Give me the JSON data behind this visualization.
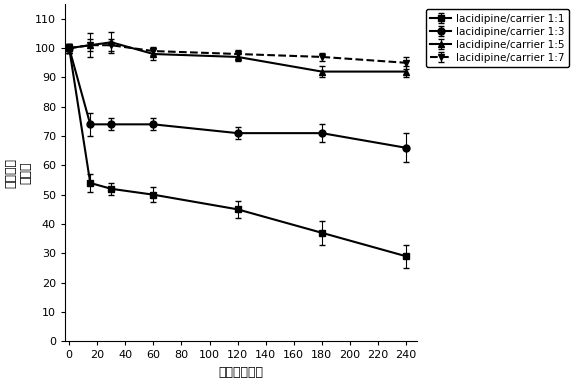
{
  "x": [
    0,
    15,
    30,
    60,
    120,
    180,
    240
  ],
  "series": [
    {
      "label": "lacidipine/carrier 1:1",
      "y": [
        100,
        54,
        52,
        50,
        45,
        37,
        29
      ],
      "yerr": [
        1.5,
        3,
        2,
        2.5,
        3,
        4,
        4
      ],
      "marker": "s",
      "linestyle": "-",
      "color": "#000000",
      "linewidth": 1.5
    },
    {
      "label": "lacidipine/carrier 1:3",
      "y": [
        100,
        74,
        74,
        74,
        71,
        71,
        66
      ],
      "yerr": [
        1.5,
        4,
        2,
        2,
        2,
        3,
        5
      ],
      "marker": "o",
      "linestyle": "-",
      "color": "#000000",
      "linewidth": 1.5
    },
    {
      "label": "lacidipine/carrier 1:5",
      "y": [
        100,
        101,
        102,
        98,
        97,
        92,
        92
      ],
      "yerr": [
        1.5,
        4,
        3.5,
        2,
        1.5,
        2,
        2
      ],
      "marker": "^",
      "linestyle": "-",
      "color": "#000000",
      "linewidth": 1.5
    },
    {
      "label": "lacidipine/carrier 1:7",
      "y": [
        100,
        101,
        101,
        99,
        98,
        97,
        95
      ],
      "yerr": [
        1.5,
        2,
        2,
        1.5,
        1.5,
        1.5,
        2
      ],
      "marker": "v",
      "linestyle": "--",
      "color": "#000000",
      "linewidth": 1.5
    }
  ],
  "xlabel": "时间（分钟）",
  "ylabel_line1": "药物浓度",
  "ylabel_line2": "（％）",
  "ylim": [
    0,
    115
  ],
  "yticks": [
    0,
    10,
    20,
    30,
    40,
    50,
    60,
    70,
    80,
    90,
    100,
    110
  ],
  "xticks": [
    0,
    20,
    40,
    60,
    80,
    100,
    120,
    140,
    160,
    180,
    200,
    220,
    240
  ],
  "xlim": [
    -3,
    248
  ],
  "background_color": "#ffffff",
  "axis_fontsize": 9,
  "legend_fontsize": 7.5,
  "tick_fontsize": 8,
  "markersize": 5
}
